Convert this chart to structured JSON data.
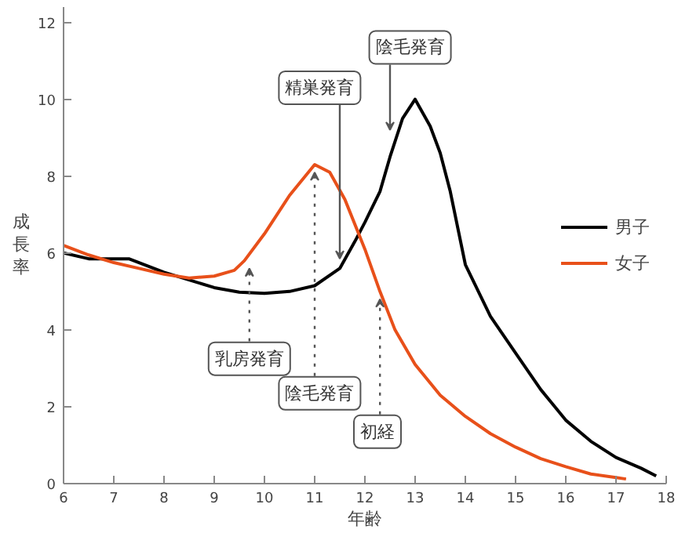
{
  "chart_data": {
    "type": "line",
    "xlabel": "年齢",
    "ylabel": "成長率",
    "xlim": [
      6,
      18
    ],
    "ylim": [
      0,
      12.4
    ],
    "xticks": [
      6,
      7,
      8,
      9,
      10,
      11,
      12,
      13,
      14,
      15,
      16,
      17,
      18
    ],
    "yticks": [
      0,
      2,
      4,
      6,
      8,
      10,
      12
    ],
    "grid": false,
    "legend": "right",
    "marker": "none",
    "line_style": "solid",
    "series": [
      {
        "name": "男子",
        "color": "#000000",
        "x": [
          6,
          6.5,
          7,
          7.3,
          8,
          8.5,
          9,
          9.5,
          10,
          10.5,
          11,
          11.5,
          11.8,
          12,
          12.3,
          12.5,
          12.75,
          13,
          13.3,
          13.5,
          13.7,
          14,
          14.5,
          15,
          15.5,
          16,
          16.5,
          17,
          17.5,
          17.8
        ],
        "values": [
          6.0,
          5.85,
          5.85,
          5.85,
          5.5,
          5.3,
          5.1,
          4.98,
          4.95,
          5.0,
          5.15,
          5.6,
          6.3,
          6.8,
          7.6,
          8.5,
          9.5,
          10.0,
          9.3,
          8.6,
          7.6,
          5.7,
          4.35,
          3.4,
          2.45,
          1.65,
          1.1,
          0.68,
          0.4,
          0.2
        ]
      },
      {
        "name": "女子",
        "color": "#e8501a",
        "x": [
          6,
          6.5,
          7,
          7.5,
          8,
          8.5,
          9,
          9.4,
          9.6,
          10,
          10.5,
          11,
          11.3,
          11.6,
          12,
          12.3,
          12.6,
          13,
          13.5,
          14,
          14.5,
          15,
          15.5,
          16,
          16.5,
          17,
          17.2
        ],
        "values": [
          6.2,
          5.95,
          5.75,
          5.6,
          5.45,
          5.35,
          5.4,
          5.55,
          5.8,
          6.5,
          7.5,
          8.3,
          8.1,
          7.4,
          6.1,
          5.0,
          4.0,
          3.1,
          2.3,
          1.75,
          1.3,
          0.95,
          0.65,
          0.44,
          0.25,
          0.16,
          0.12
        ]
      }
    ],
    "annotations": [
      {
        "text": "乳房発育",
        "x": 9.7,
        "y": 5.6
      },
      {
        "text": "陰毛発育",
        "x": 11,
        "y": 8.1
      },
      {
        "text": "初経",
        "x": 12.3,
        "y": 4.8
      },
      {
        "text": "精巣発育",
        "x": 11.5,
        "y": 5.85
      },
      {
        "text": "陰毛発育",
        "x": 12.5,
        "y": 9.2
      }
    ]
  }
}
